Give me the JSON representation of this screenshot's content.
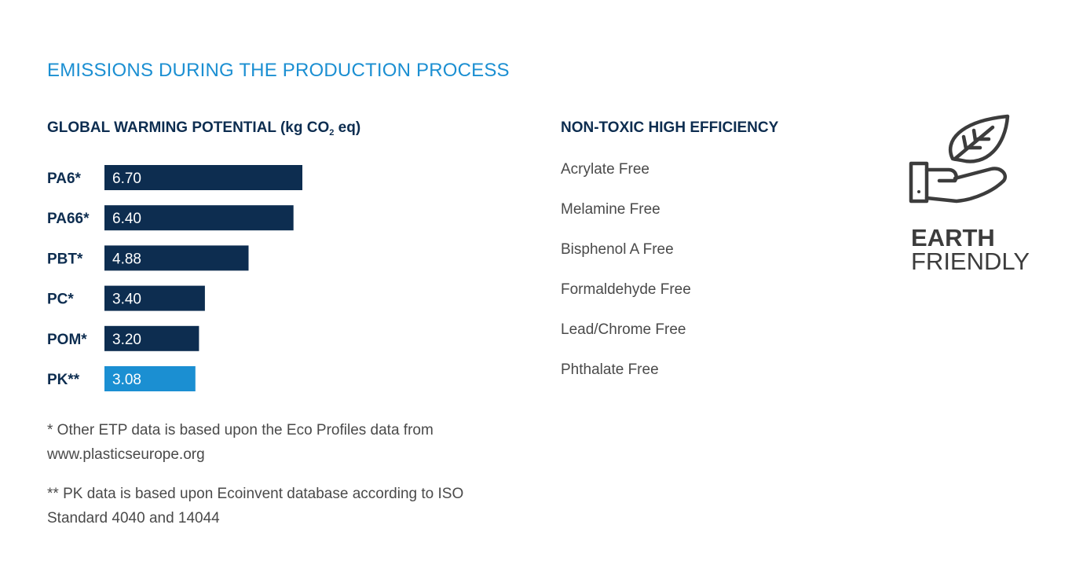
{
  "section_title": "EMISSIONS DURING THE PRODUCTION PROCESS",
  "chart_title": {
    "main": "GLOBAL WARMING POTENTIAL (kg CO",
    "subscript": "2",
    "suffix": " eq)"
  },
  "chart_data": {
    "type": "bar",
    "orientation": "horizontal",
    "title": "GLOBAL WARMING POTENTIAL (kg CO2 eq)",
    "categories": [
      "PA6*",
      "PA66*",
      "PBT*",
      "PC*",
      "POM*",
      "PK**"
    ],
    "values": [
      6.7,
      6.4,
      4.88,
      3.4,
      3.2,
      3.08
    ],
    "value_labels": [
      "6.70",
      "6.40",
      "4.88",
      "3.40",
      "3.20",
      "3.08"
    ],
    "highlight_index": 5,
    "xlim": [
      0,
      6.7
    ],
    "grid": false,
    "legend": false,
    "colors": {
      "default_bar": "#0d2d50",
      "highlight_bar": "#1b8fd2",
      "bar_label": "#ffffff",
      "category_label": "#0d2d50"
    }
  },
  "footnotes": [
    "* Other ETP data is based upon the Eco Profiles data from www.plasticseurope.org",
    "** PK data is based upon Ecoinvent database according to ISO Standard 4040 and 14044"
  ],
  "features": {
    "title": "NON-TOXIC HIGH EFFICIENCY",
    "items": [
      "Acrylate Free",
      "Melamine Free",
      "Bisphenol A Free",
      "Formaldehyde Free",
      "Lead/Chrome Free",
      "Phthalate Free"
    ]
  },
  "badge": {
    "icon": "leaf-in-hand-icon",
    "line1": "EARTH",
    "line2": "FRIENDLY",
    "color": "#3c3c3c"
  }
}
